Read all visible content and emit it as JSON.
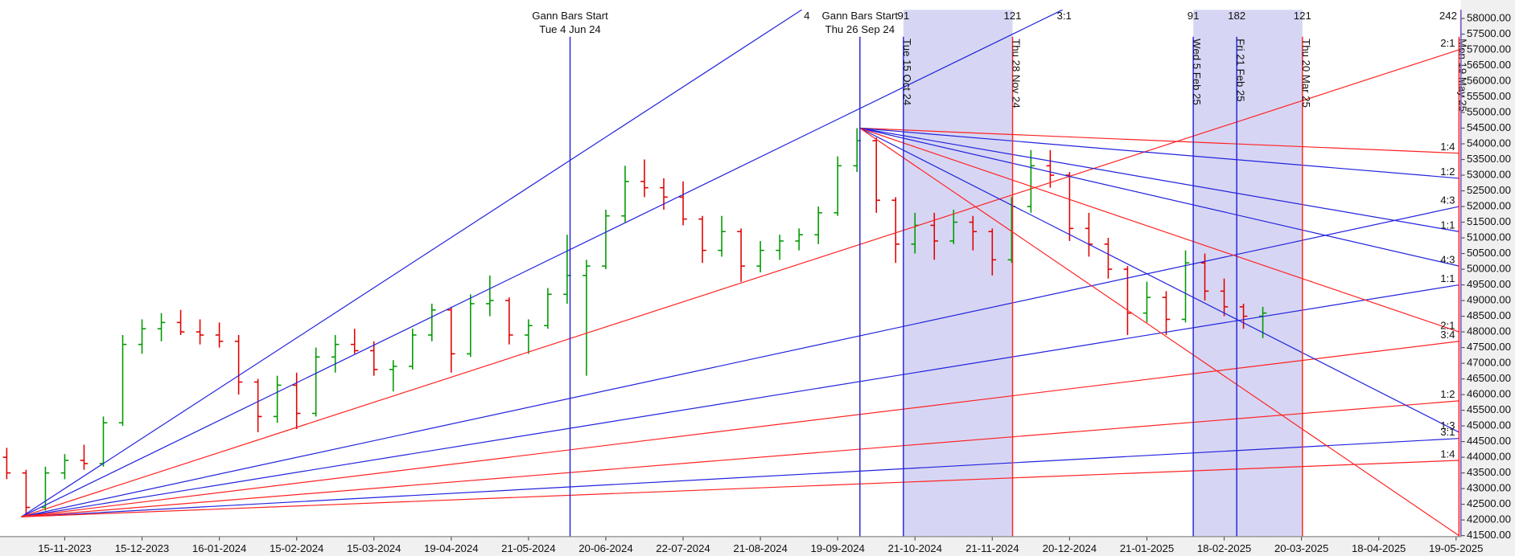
{
  "chart_data": {
    "type": "ohlc",
    "categories": [
      null,
      null,
      null,
      "15-11-2023",
      null,
      null,
      null,
      "15-12-2023",
      null,
      null,
      null,
      "16-01-2024",
      null,
      null,
      null,
      "15-02-2024",
      null,
      null,
      null,
      "15-03-2024",
      null,
      null,
      null,
      "19-04-2024",
      null,
      null,
      null,
      "21-05-2024",
      null,
      null,
      null,
      "20-06-2024",
      null,
      null,
      null,
      "22-07-2024",
      null,
      null,
      null,
      "21-08-2024",
      null,
      null,
      null,
      "19-09-2024",
      null,
      null,
      null,
      "21-10-2024",
      null,
      null,
      null,
      "21-11-2024",
      null,
      null,
      null,
      "20-12-2024",
      null,
      null,
      null,
      "21-01-2025",
      null,
      null,
      null,
      "18-02-2025",
      null,
      null,
      null,
      "20-03-2025",
      null,
      null,
      null,
      "18-04-2025",
      null,
      null,
      null,
      "19-05-2025"
    ],
    "open": [
      44000,
      43500,
      42400,
      43500,
      43900,
      43800,
      45100,
      47600,
      48100,
      48300,
      48000,
      47900,
      47700,
      46400,
      45300,
      46300,
      45400,
      47200,
      47600,
      47400,
      46800,
      46900,
      47900,
      48700,
      47300,
      48900,
      49000,
      47900,
      48200,
      49200,
      49800,
      50100,
      51700,
      52800,
      52600,
      52300,
      51600,
      50600,
      51200,
      50100,
      50600,
      50900,
      51100,
      51800,
      53300,
      54100,
      52200,
      50800,
      51400,
      50900,
      51500,
      51200,
      50300,
      52000,
      53300,
      53000,
      51300,
      50800,
      50000,
      48600,
      49100,
      48400,
      50200,
      49300,
      48800,
      48500,
      null,
      null,
      null,
      null,
      null,
      null,
      null,
      null,
      null,
      null
    ],
    "high": [
      44300,
      43600,
      43700,
      44100,
      44400,
      45300,
      47900,
      48400,
      48600,
      48700,
      48400,
      48300,
      47900,
      46500,
      46600,
      46700,
      47500,
      47900,
      48100,
      47700,
      47100,
      48100,
      48900,
      48800,
      49200,
      49800,
      49100,
      48400,
      49400,
      51100,
      50300,
      51900,
      53300,
      53500,
      52900,
      52800,
      51700,
      51700,
      51300,
      50900,
      51100,
      51300,
      52000,
      53600,
      54500,
      54200,
      52300,
      51800,
      51800,
      51900,
      51700,
      51300,
      52300,
      53800,
      53800,
      53100,
      51800,
      51000,
      50100,
      49600,
      49300,
      50600,
      50500,
      49700,
      48900,
      48800,
      null,
      null,
      null,
      null,
      null,
      null,
      null,
      null,
      null,
      null
    ],
    "low": [
      43300,
      42100,
      42300,
      43300,
      43600,
      43700,
      45000,
      47300,
      47700,
      47900,
      47600,
      47500,
      46000,
      44800,
      45100,
      44900,
      45300,
      46700,
      47300,
      46600,
      46100,
      46800,
      47700,
      46700,
      47200,
      48500,
      47600,
      47300,
      48100,
      48900,
      46600,
      50000,
      51500,
      52300,
      51900,
      51400,
      50200,
      50400,
      49600,
      49900,
      50300,
      50600,
      50800,
      51700,
      53100,
      51800,
      50200,
      50500,
      50300,
      50800,
      50600,
      49800,
      50200,
      51800,
      52600,
      50900,
      50400,
      49700,
      47900,
      48300,
      47900,
      48300,
      49000,
      48500,
      48100,
      47800,
      null,
      null,
      null,
      null,
      null,
      null,
      null,
      null,
      null,
      null
    ],
    "close": [
      43500,
      42400,
      43500,
      43900,
      43800,
      45100,
      47600,
      48100,
      48300,
      48000,
      47900,
      47700,
      46400,
      45300,
      46300,
      45400,
      47200,
      47600,
      47400,
      46800,
      46900,
      47900,
      48700,
      47300,
      48900,
      49000,
      47900,
      48200,
      49200,
      49800,
      50100,
      51700,
      52800,
      52600,
      52300,
      51600,
      50600,
      51200,
      50100,
      50600,
      50900,
      51100,
      51800,
      53300,
      54100,
      52200,
      50800,
      51400,
      50900,
      51500,
      51200,
      50300,
      52000,
      53300,
      53000,
      51300,
      50800,
      50000,
      48600,
      49100,
      48400,
      50200,
      49300,
      48800,
      48500,
      48600,
      null,
      null,
      null,
      null,
      null,
      null,
      null,
      null,
      null,
      null
    ],
    "up_color": "#009900",
    "down_color": "#e00000",
    "ylim": [
      41500,
      58000
    ],
    "yticks": [
      {
        "value": 41500,
        "label": "41500.00"
      },
      {
        "value": 42000,
        "label": "42000.00"
      },
      {
        "value": 42500,
        "label": "42500.00"
      },
      {
        "value": 43000,
        "label": "43000.00"
      },
      {
        "value": 43500,
        "label": "43500.00"
      },
      {
        "value": 44000,
        "label": "44000.00"
      },
      {
        "value": 44500,
        "label": "44500.00"
      },
      {
        "value": 45000,
        "label": "45000.00"
      },
      {
        "value": 45500,
        "label": "45500.00"
      },
      {
        "value": 46000,
        "label": "46000.00"
      },
      {
        "value": 46500,
        "label": "46500.00"
      },
      {
        "value": 47000,
        "label": "47000.00"
      },
      {
        "value": 47500,
        "label": "47500.00"
      },
      {
        "value": 48000,
        "label": "48000.00"
      },
      {
        "value": 48500,
        "label": "48500.00"
      },
      {
        "value": 49000,
        "label": "49000.00"
      },
      {
        "value": 49500,
        "label": "49500.00"
      },
      {
        "value": 50000,
        "label": "50000.00"
      },
      {
        "value": 50500,
        "label": "50500.00"
      },
      {
        "value": 51000,
        "label": "51000.00"
      },
      {
        "value": 51500,
        "label": "51500.00"
      },
      {
        "value": 52000,
        "label": "52000.00"
      },
      {
        "value": 52500,
        "label": "52500.00"
      },
      {
        "value": 53000,
        "label": "53000.00"
      },
      {
        "value": 53500,
        "label": "53500.00"
      },
      {
        "value": 54000,
        "label": "54000.00"
      },
      {
        "value": 54500,
        "label": "54500.00"
      },
      {
        "value": 55000,
        "label": "55000.00"
      },
      {
        "value": 55500,
        "label": "55500.00"
      },
      {
        "value": 56000,
        "label": "56000.00"
      },
      {
        "value": 56500,
        "label": "56500.00"
      },
      {
        "value": 57000,
        "label": "57000.00"
      },
      {
        "value": 57500,
        "label": "57500.00"
      },
      {
        "value": 58000,
        "label": "58000.00"
      }
    ],
    "fan_lines": [
      {
        "from": [
          0.75,
          42100
        ],
        "to": [
          41.15,
          58280
        ],
        "color": "#2222dd",
        "label": "4"
      },
      {
        "from": [
          0.75,
          42100
        ],
        "to": [
          54.65,
          58280
        ],
        "color": "#2222dd",
        "label": "3:1"
      },
      {
        "from": [
          0.75,
          42100
        ],
        "to": [
          75.15,
          52000
        ],
        "color": "#2222dd",
        "label": "4:3"
      },
      {
        "from": [
          0.75,
          42100
        ],
        "to": [
          75.15,
          49500
        ],
        "color": "#2222dd",
        "label": "1:1"
      },
      {
        "from": [
          0.75,
          42100
        ],
        "to": [
          75.15,
          44600
        ],
        "color": "#2222dd",
        "label": "3:1"
      },
      {
        "from": [
          0.75,
          42100
        ],
        "to": [
          75.15,
          57000
        ],
        "color": "#ff2222",
        "label": "2:1"
      },
      {
        "from": [
          0.75,
          42100
        ],
        "to": [
          75.15,
          47700
        ],
        "color": "#ff2222",
        "label": "3:4"
      },
      {
        "from": [
          0.75,
          42100
        ],
        "to": [
          75.15,
          45800
        ],
        "color": "#ff2222",
        "label": "1:2"
      },
      {
        "from": [
          0.75,
          42100
        ],
        "to": [
          75.15,
          43900
        ],
        "color": "#ff2222",
        "label": "1:4"
      },
      {
        "from": [
          44.15,
          54500
        ],
        "to": [
          75.15,
          53700
        ],
        "color": "#ff2222",
        "label": "1:4"
      },
      {
        "from": [
          44.15,
          54500
        ],
        "to": [
          75.15,
          52900
        ],
        "color": "#2222dd",
        "label": "1:2"
      },
      {
        "from": [
          44.15,
          54500
        ],
        "to": [
          75.15,
          51200
        ],
        "color": "#2222dd",
        "label": "1:1"
      },
      {
        "from": [
          44.15,
          54500
        ],
        "to": [
          75.15,
          50100
        ],
        "color": "#2222dd",
        "label": "4:3"
      },
      {
        "from": [
          44.15,
          54500
        ],
        "to": [
          75.15,
          48000
        ],
        "color": "#ff2222",
        "label": "2:1"
      },
      {
        "from": [
          44.15,
          54500
        ],
        "to": [
          75.15,
          44800
        ],
        "color": "#2222dd",
        "label": "1:3"
      },
      {
        "from": [
          44.15,
          54500
        ],
        "to": [
          75.15,
          41500
        ],
        "color": "#ff2222"
      }
    ],
    "shaded": [
      [
        46.4,
        52.05
      ],
      [
        61.4,
        67.05
      ]
    ],
    "shade_color": "#c8c8f0",
    "markers": [
      {
        "x": 29.15,
        "color": "#2222dd",
        "title": "Gann Bars Start",
        "date": "Tue 4 Jun 24"
      },
      {
        "x": 44.15,
        "color": "#2222dd",
        "title": "Gann Bars Start",
        "date": "Thu 26 Sep 24"
      },
      {
        "x": 46.4,
        "color": "#2222dd",
        "count": "91",
        "date": "Tue 15 Oct 24"
      },
      {
        "x": 52.05,
        "color": "#ff2222",
        "count": "121",
        "date": "Thu 28 Nov 24"
      },
      {
        "x": 61.4,
        "color": "#2222dd",
        "count": "91",
        "date": "Wed 5 Feb 25"
      },
      {
        "x": 63.65,
        "color": "#2222dd",
        "count": "182",
        "date": "Fri 21 Feb 25"
      },
      {
        "x": 67.05,
        "color": "#ff2222",
        "count": "121",
        "date": "Thu 20 Mar 25"
      },
      {
        "x": 75.15,
        "color": "#ff2222",
        "count": "242",
        "date": "Mon 19 May 25"
      }
    ]
  }
}
